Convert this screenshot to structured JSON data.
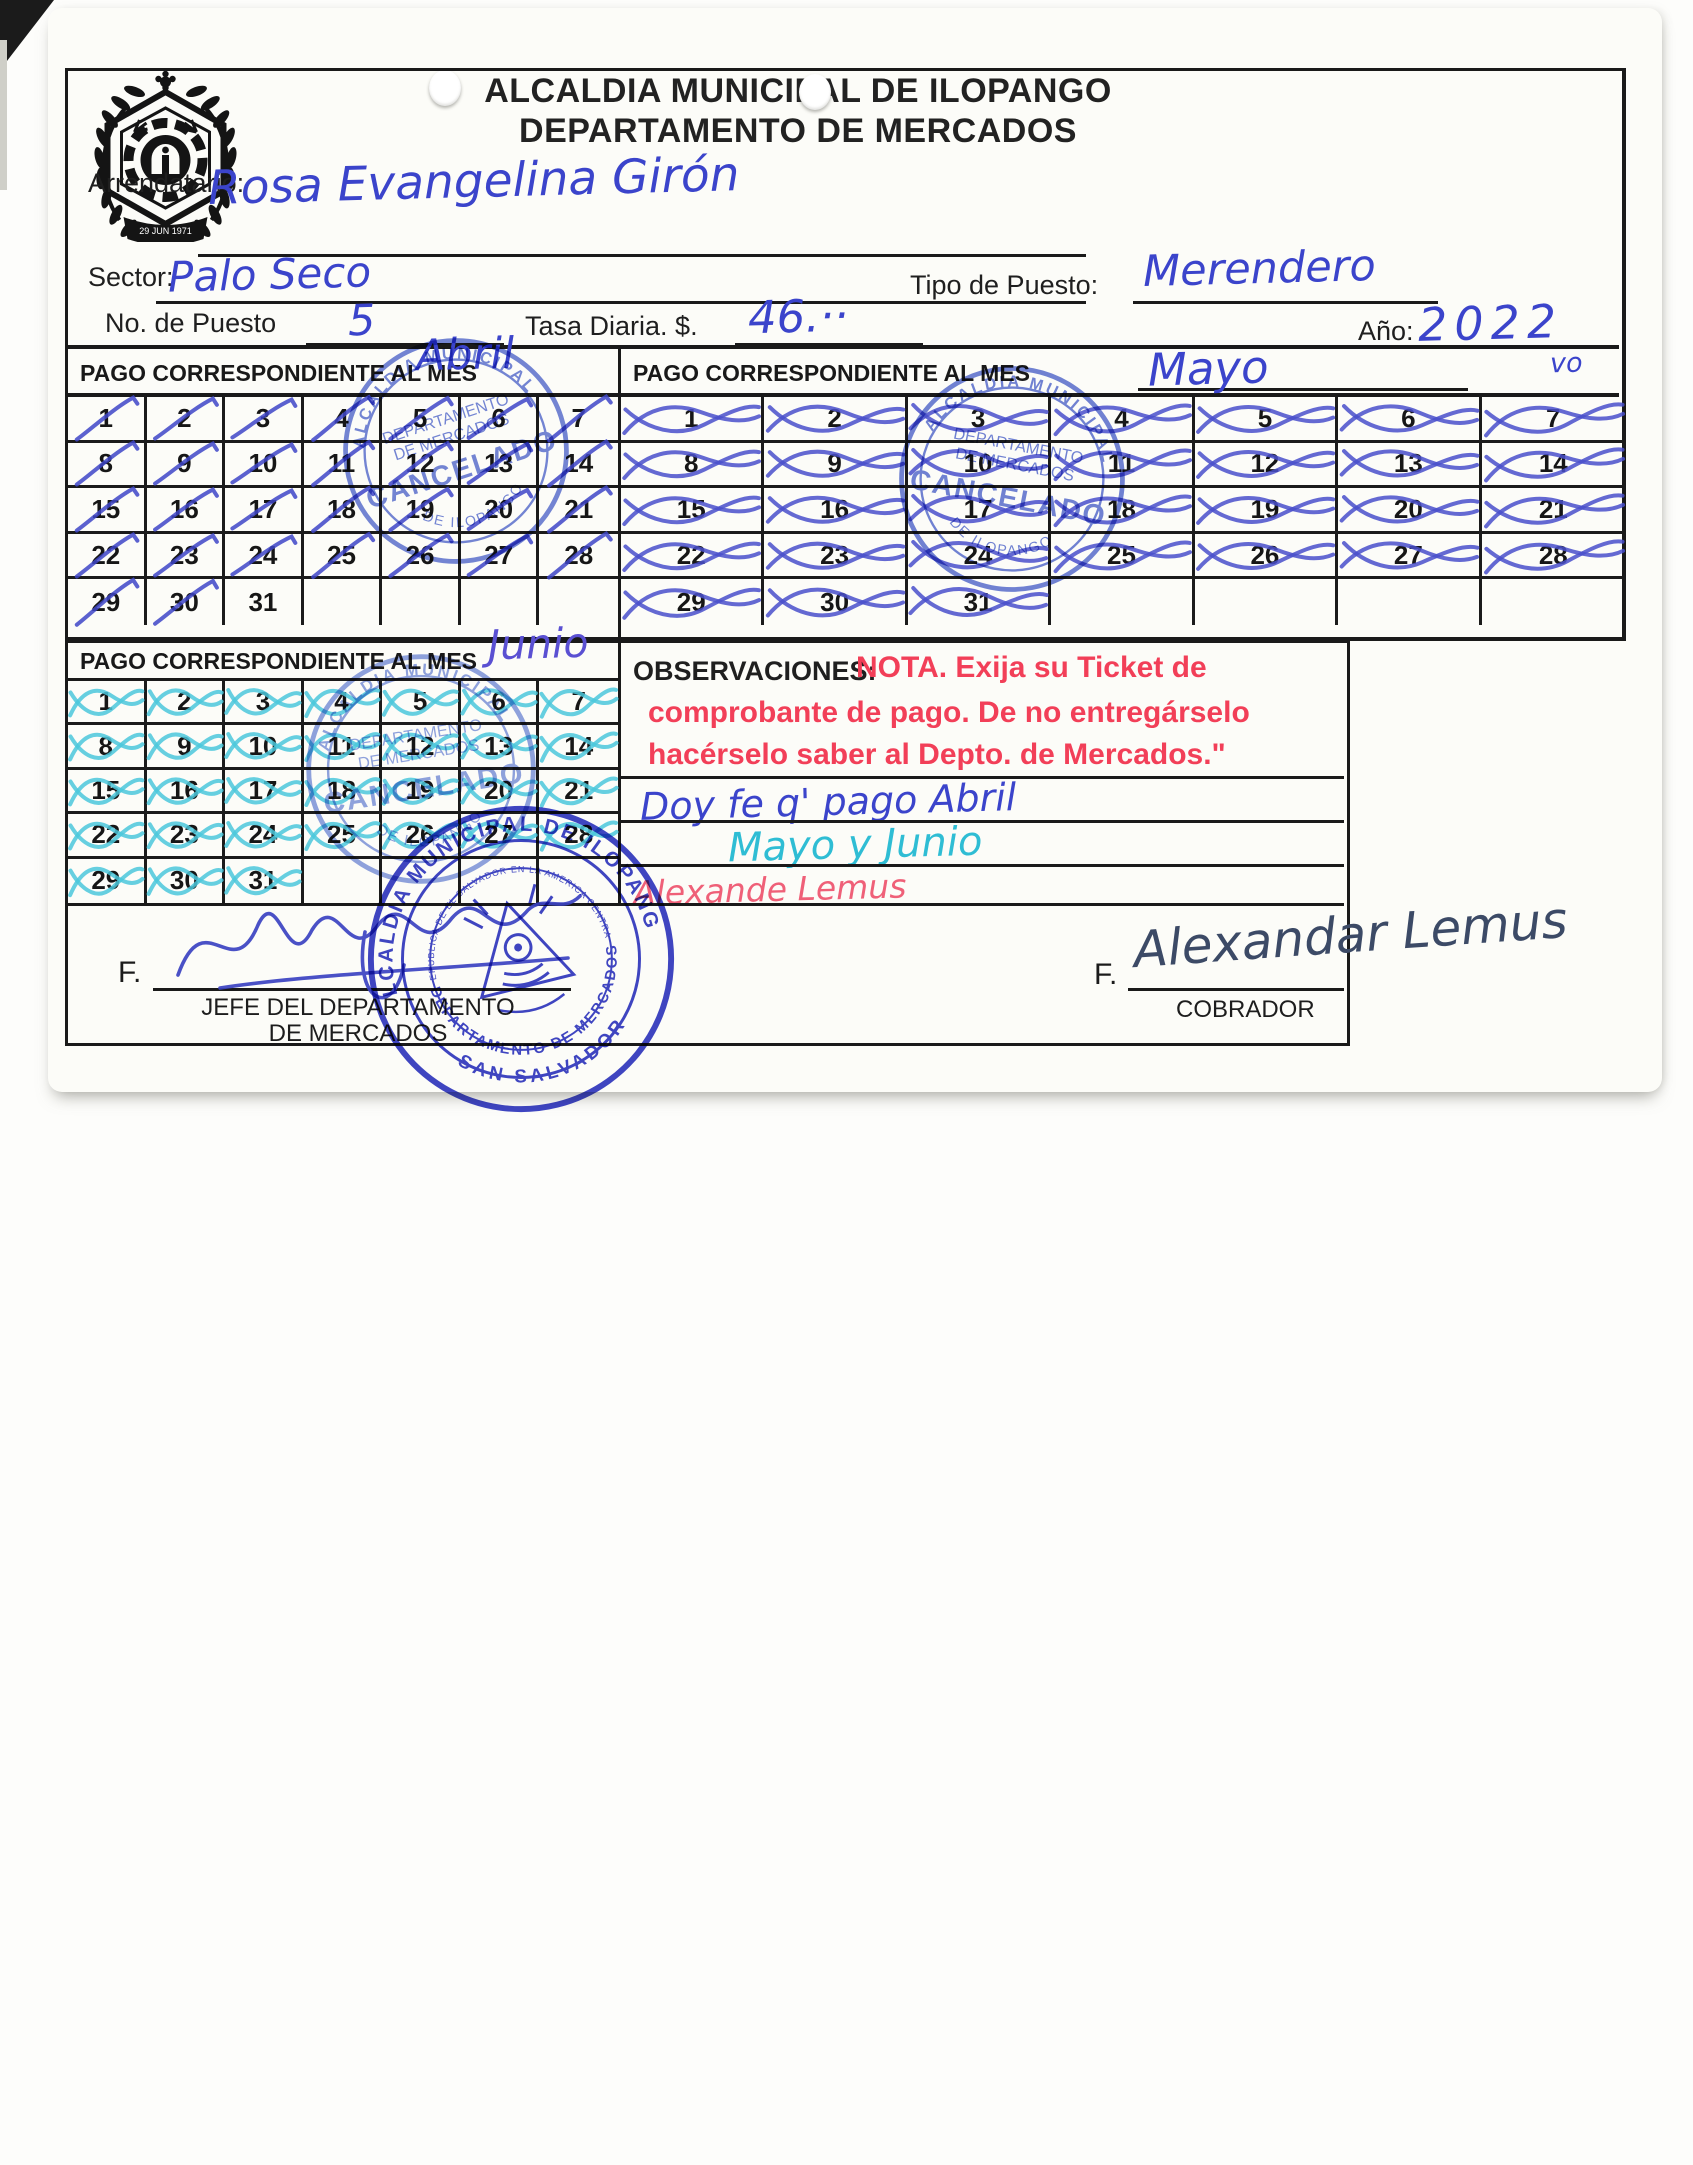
{
  "card": {
    "title_line1": "ALCALDIA MUNICIPAL DE ILOPANGO",
    "title_line2": "DEPARTAMENTO DE MERCADOS",
    "logo_banner": "29 JUN 1971"
  },
  "ink_colors": {
    "blue": "#3b44cb",
    "cyan": "#2fbdd4",
    "pink": "#ef6078",
    "signature": "#3c4a66",
    "stamp_blue": "#5168cf",
    "stamp_light": "#617bd6",
    "seal_blue": "#2a31c0"
  },
  "fields": {
    "arrendatario_label": "Arrendatario:",
    "arrendatario_value": "Rosa Evangelina Girón",
    "sector_label": "Sector:",
    "sector_value": "Palo Seco",
    "tipo_puesto_label": "Tipo de Puesto:",
    "tipo_puesto_value": "Merendero",
    "no_puesto_label": "No. de Puesto",
    "no_puesto_value": "5",
    "tasa_label": "Tasa Diaria. $.",
    "tasa_value": "46.··",
    "anio_label": "Año:",
    "anio_value": "2022"
  },
  "months": [
    {
      "name": "abril",
      "header_label": "PAGO CORRESPONDIENTE AL MES",
      "month_value": "Abril",
      "annotation": "",
      "mark_style": "slash",
      "ink_color": "#3f46c8",
      "days_shown": 31,
      "marked_days": [
        1,
        2,
        3,
        4,
        5,
        6,
        7,
        8,
        9,
        10,
        11,
        12,
        13,
        14,
        15,
        16,
        17,
        18,
        19,
        20,
        21,
        22,
        23,
        24,
        25,
        26,
        27,
        28,
        29,
        30
      ]
    },
    {
      "name": "mayo",
      "header_label": "PAGO CORRESPONDIENTE AL MES",
      "month_value": "Mayo",
      "annotation": "vo",
      "mark_style": "cross",
      "ink_color": "#4a50cc",
      "days_shown": 31,
      "marked_days": [
        1,
        2,
        3,
        4,
        5,
        6,
        7,
        8,
        9,
        10,
        11,
        12,
        13,
        14,
        15,
        16,
        17,
        18,
        19,
        20,
        21,
        22,
        23,
        24,
        25,
        26,
        27,
        28,
        29,
        30,
        31
      ]
    },
    {
      "name": "junio",
      "header_label": "PAGO CORRESPONDIENTE AL MES",
      "month_value": "Junio",
      "annotation": "",
      "mark_style": "cross",
      "ink_color": "#4cc8dc",
      "days_shown": 31,
      "marked_days": [
        1,
        2,
        3,
        4,
        5,
        6,
        7,
        8,
        9,
        10,
        11,
        12,
        13,
        14,
        15,
        16,
        17,
        18,
        19,
        20,
        21,
        22,
        23,
        24,
        25,
        26,
        27,
        28,
        29,
        30,
        31
      ]
    }
  ],
  "observations": {
    "label": "OBSERVACIONES:",
    "nota_color": "#f23f58",
    "nota_line1": "NOTA. Exija su Ticket de",
    "nota_line2": "comprobante de pago. De no entregárselo",
    "nota_line3": "hacérselo saber al Depto. de Mercados.\"",
    "hand_line1": "Doy fe q' pago Abril",
    "hand_line2": "Mayo y Junio",
    "hand_line3": "Alexande Lemus"
  },
  "signatures": {
    "left_f_label": "F.",
    "left_title_line1": "JEFE DEL DEPARTAMENTO",
    "left_title_line2": "DE MERCADOS",
    "right_f_label": "F.",
    "right_name": "Alexandar Lemus",
    "right_title": "COBRADOR"
  },
  "stamps": {
    "cancelado_arc_top": "ALCALDIA MUNICIPAL",
    "cancelado_arc_bottom": "DE ILOPANGO",
    "cancelado_dept1": "DEPARTAMENTO",
    "cancelado_dept2": "DE MERCADOS",
    "cancelado_text": "CANCELADO",
    "seal_arc_top": "ALCALDIA MUNICIPAL DE ILOPANGO",
    "seal_arc_mid": "DEPARTAMENTO DE MERCADOS",
    "seal_arc_bottom": "SAN SALVADOR",
    "seal_inner": "REPUBLICA DE EL SALVADOR EN LA AMERICA CENTRAL"
  }
}
